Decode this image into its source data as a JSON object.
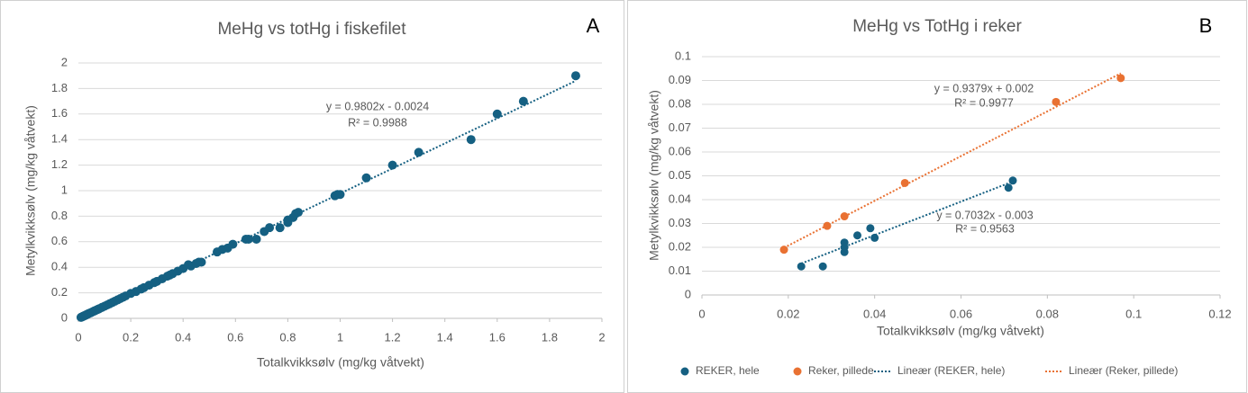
{
  "chart_data": [
    {
      "type": "scatter",
      "title": "MeHg vs totHg i fiskefilet",
      "panel_label": "A",
      "x_label": "Totalkvikksølv (mg/kg våtvekt)",
      "y_label": "Metylkvikksølv (mg/kg våtvekt)",
      "xlim": [
        0,
        2
      ],
      "ylim": [
        0,
        2
      ],
      "xticks": [
        0,
        0.2,
        0.4,
        0.6,
        0.8,
        1,
        1.2,
        1.4,
        1.6,
        1.8,
        2
      ],
      "yticks": [
        0,
        0.2,
        0.4,
        0.6,
        0.8,
        1,
        1.2,
        1.4,
        1.6,
        1.8,
        2
      ],
      "grid": true,
      "series": [
        {
          "color": "#156082",
          "x": [
            0.01,
            0.012,
            0.015,
            0.018,
            0.02,
            0.022,
            0.025,
            0.028,
            0.03,
            0.033,
            0.035,
            0.038,
            0.04,
            0.045,
            0.05,
            0.055,
            0.06,
            0.065,
            0.07,
            0.075,
            0.08,
            0.09,
            0.1,
            0.11,
            0.12,
            0.13,
            0.14,
            0.15,
            0.16,
            0.17,
            0.18,
            0.2,
            0.22,
            0.24,
            0.25,
            0.27,
            0.29,
            0.3,
            0.32,
            0.34,
            0.35,
            0.36,
            0.38,
            0.4,
            0.42,
            0.43,
            0.45,
            0.46,
            0.47,
            0.53,
            0.55,
            0.57,
            0.59,
            0.64,
            0.65,
            0.68,
            0.71,
            0.73,
            0.77,
            0.8,
            0.8,
            0.82,
            0.83,
            0.84,
            0.98,
            0.99,
            1,
            1.1,
            1.2,
            1.3,
            1.5,
            1.6,
            1.7,
            1.9
          ],
          "values": [
            0.008,
            0.01,
            0.013,
            0.016,
            0.018,
            0.02,
            0.022,
            0.025,
            0.028,
            0.03,
            0.033,
            0.036,
            0.038,
            0.042,
            0.047,
            0.052,
            0.057,
            0.062,
            0.066,
            0.071,
            0.076,
            0.086,
            0.095,
            0.105,
            0.115,
            0.125,
            0.135,
            0.145,
            0.155,
            0.165,
            0.175,
            0.195,
            0.21,
            0.23,
            0.24,
            0.26,
            0.28,
            0.29,
            0.31,
            0.33,
            0.34,
            0.35,
            0.37,
            0.39,
            0.42,
            0.41,
            0.43,
            0.44,
            0.44,
            0.52,
            0.54,
            0.55,
            0.58,
            0.62,
            0.62,
            0.62,
            0.68,
            0.71,
            0.71,
            0.75,
            0.77,
            0.79,
            0.82,
            0.83,
            0.96,
            0.97,
            0.97,
            1.1,
            1.2,
            1.3,
            1.4,
            1.6,
            1.7,
            1.9
          ],
          "trendline": {
            "x": [
              0,
              1.9
            ],
            "y": [
              -0.0024,
              1.86
            ],
            "equation": "y = 0.9802x - 0.0024",
            "r2": "R² = 0.9988"
          }
        }
      ]
    },
    {
      "type": "scatter",
      "title": "MeHg vs TotHg i reker",
      "panel_label": "B",
      "x_label": "Totalkvikksølv (mg/kg våtvekt)",
      "y_label": "Metylkvikksølv (mg/kg våtvekt)",
      "xlim": [
        0,
        0.12
      ],
      "ylim": [
        0,
        0.1
      ],
      "xticks": [
        0,
        0.02,
        0.04,
        0.06,
        0.08,
        0.1,
        0.12
      ],
      "yticks": [
        0,
        0.01,
        0.02,
        0.03,
        0.04,
        0.05,
        0.06,
        0.07,
        0.08,
        0.09,
        0.1
      ],
      "grid": true,
      "legend": "bottom",
      "series": [
        {
          "name": "REKER, hele",
          "color": "#156082",
          "x": [
            0.023,
            0.028,
            0.033,
            0.033,
            0.033,
            0.036,
            0.039,
            0.04,
            0.071,
            0.072
          ],
          "values": [
            0.012,
            0.012,
            0.018,
            0.02,
            0.022,
            0.025,
            0.028,
            0.024,
            0.045,
            0.048
          ],
          "trendline": {
            "name": "Lineær (REKER, hele)",
            "x": [
              0.023,
              0.072
            ],
            "y": [
              0.0132,
              0.0476
            ],
            "equation": "y = 0.7032x - 0.003",
            "r2": "R² = 0.9563"
          }
        },
        {
          "name": "Reker, pillede",
          "color": "#e97132",
          "x": [
            0.019,
            0.029,
            0.033,
            0.047,
            0.082,
            0.097
          ],
          "values": [
            0.019,
            0.029,
            0.033,
            0.047,
            0.081,
            0.091
          ],
          "trendline": {
            "name": "Lineær (Reker, pillede)",
            "x": [
              0.019,
              0.097
            ],
            "y": [
              0.0198,
              0.093
            ],
            "equation": "y = 0.9379x + 0.002",
            "r2": "R² = 0.9977"
          }
        }
      ]
    }
  ]
}
